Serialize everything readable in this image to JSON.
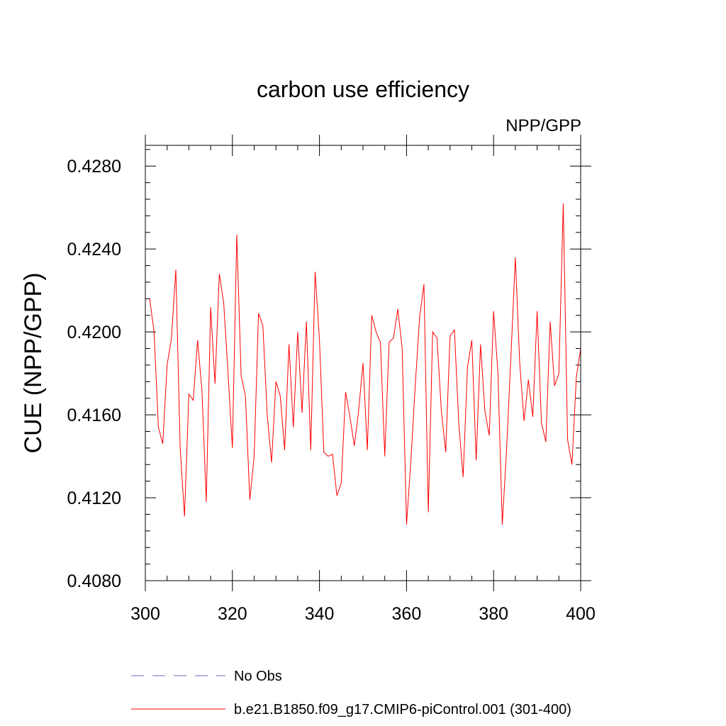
{
  "chart_data": {
    "type": "line",
    "title": "carbon use efficiency",
    "subtitle_right": "NPP/GPP",
    "xlabel": "",
    "ylabel": "CUE  (NPP/GPP)",
    "xlim": [
      300,
      400
    ],
    "ylim": [
      0.408,
      0.429
    ],
    "xticks": [
      300,
      320,
      340,
      360,
      380,
      400
    ],
    "xtick_labels": [
      "300",
      "320",
      "340",
      "360",
      "380",
      "400"
    ],
    "yticks": [
      0.408,
      0.412,
      0.416,
      0.42,
      0.424,
      0.428
    ],
    "ytick_labels": [
      "0.4080",
      "0.4120",
      "0.4160",
      "0.4200",
      "0.4240",
      "0.4280"
    ],
    "grid": false,
    "legend_position": "bottom",
    "legend": [
      {
        "label": "No Obs",
        "color": "#8a86c8",
        "style": "dashed"
      },
      {
        "label": "b.e21.B1850.f09_g17.CMIP6-piControl.001 (301-400)",
        "color": "#ff0000",
        "style": "solid"
      }
    ],
    "series": [
      {
        "name": "b.e21.B1850.f09_g17.CMIP6-piControl.001 (301-400)",
        "color": "#ff0000",
        "x": [
          301,
          302,
          303,
          304,
          305,
          306,
          307,
          308,
          309,
          310,
          311,
          312,
          313,
          314,
          315,
          316,
          317,
          318,
          319,
          320,
          321,
          322,
          323,
          324,
          325,
          326,
          327,
          328,
          329,
          330,
          331,
          332,
          333,
          334,
          335,
          336,
          337,
          338,
          339,
          340,
          341,
          342,
          343,
          344,
          345,
          346,
          347,
          348,
          349,
          350,
          351,
          352,
          353,
          354,
          355,
          356,
          357,
          358,
          359,
          360,
          361,
          362,
          363,
          364,
          365,
          366,
          367,
          368,
          369,
          370,
          371,
          372,
          373,
          374,
          375,
          376,
          377,
          378,
          379,
          380,
          381,
          382,
          383,
          384,
          385,
          386,
          387,
          388,
          389,
          390,
          391,
          392,
          393,
          394,
          395,
          396,
          397,
          398,
          399,
          400
        ],
        "values": [
          0.4216,
          0.42,
          0.4154,
          0.4146,
          0.4184,
          0.4197,
          0.423,
          0.4144,
          0.4111,
          0.417,
          0.4167,
          0.4196,
          0.4172,
          0.4118,
          0.4212,
          0.4175,
          0.4228,
          0.4214,
          0.418,
          0.4144,
          0.4247,
          0.4179,
          0.4169,
          0.4119,
          0.414,
          0.4209,
          0.4203,
          0.416,
          0.4137,
          0.4176,
          0.4169,
          0.4143,
          0.4194,
          0.4154,
          0.42,
          0.4161,
          0.4205,
          0.4143,
          0.4229,
          0.4196,
          0.4142,
          0.414,
          0.4141,
          0.4121,
          0.4127,
          0.4171,
          0.4159,
          0.4145,
          0.4162,
          0.4185,
          0.4143,
          0.4208,
          0.42,
          0.4195,
          0.414,
          0.4195,
          0.4197,
          0.4211,
          0.4192,
          0.4107,
          0.4138,
          0.4174,
          0.4207,
          0.4223,
          0.4113,
          0.42,
          0.4197,
          0.4162,
          0.4142,
          0.4198,
          0.4201,
          0.4156,
          0.413,
          0.4183,
          0.4196,
          0.4138,
          0.4194,
          0.4162,
          0.415,
          0.421,
          0.418,
          0.4107,
          0.4144,
          0.4189,
          0.4236,
          0.4185,
          0.4157,
          0.4177,
          0.4159,
          0.421,
          0.4156,
          0.4147,
          0.4205,
          0.4174,
          0.418,
          0.4262,
          0.4148,
          0.4136,
          0.4178,
          0.4192
        ]
      }
    ]
  }
}
